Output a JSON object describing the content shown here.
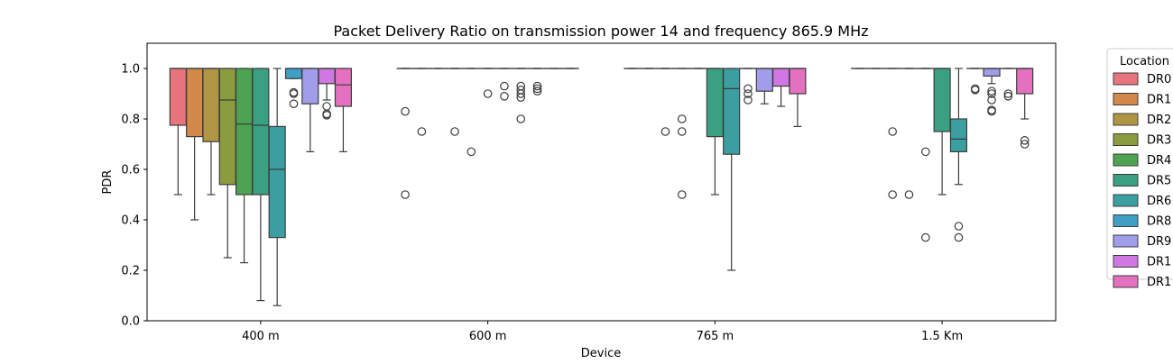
{
  "chart_data": {
    "type": "box",
    "title": "Packet Delivery Ratio on transmission power 14 and frequency 865.9 MHz",
    "xlabel": "Device",
    "ylabel": "PDR",
    "ylim": [
      0.0,
      1.1
    ],
    "yticks": [
      "0.0",
      "0.2",
      "0.4",
      "0.6",
      "0.8",
      "1.0"
    ],
    "categories": [
      "400 m",
      "600 m",
      "765 m",
      "1.5 Km"
    ],
    "legend": {
      "title": "Location",
      "placement": "right-outside",
      "entries": [
        "DR0",
        "DR1",
        "DR2",
        "DR3",
        "DR4",
        "DR5",
        "DR6",
        "DR8",
        "DR9",
        "DR1",
        "DR1"
      ]
    },
    "hue_colors": [
      "#e8747e",
      "#d3894a",
      "#b09544",
      "#8b9c3e",
      "#4da352",
      "#3ba082",
      "#3b9ea1",
      "#3f9fc4",
      "#a09deb",
      "#d177e3",
      "#e471bf"
    ],
    "series": [
      {
        "name": "DR0",
        "boxes": [
          {
            "category": "400 m",
            "q1": 0.775,
            "median": 1.0,
            "q3": 1.0,
            "whislo": 0.5,
            "whishi": 1.0,
            "fliers": []
          },
          {
            "category": "600 m",
            "q1": 1.0,
            "median": 1.0,
            "q3": 1.0,
            "whislo": 1.0,
            "whishi": 1.0,
            "fliers": [
              0.83,
              0.5
            ]
          },
          {
            "category": "765 m",
            "q1": 1.0,
            "median": 1.0,
            "q3": 1.0,
            "whislo": 1.0,
            "whishi": 1.0,
            "fliers": []
          },
          {
            "category": "1.5 Km",
            "q1": 1.0,
            "median": 1.0,
            "q3": 1.0,
            "whislo": 1.0,
            "whishi": 1.0,
            "fliers": []
          }
        ]
      },
      {
        "name": "DR1",
        "boxes": [
          {
            "category": "400 m",
            "q1": 0.73,
            "median": 1.0,
            "q3": 1.0,
            "whislo": 0.4,
            "whishi": 1.0,
            "fliers": []
          },
          {
            "category": "600 m",
            "q1": 1.0,
            "median": 1.0,
            "q3": 1.0,
            "whislo": 1.0,
            "whishi": 1.0,
            "fliers": [
              0.75
            ]
          },
          {
            "category": "765 m",
            "q1": 1.0,
            "median": 1.0,
            "q3": 1.0,
            "whislo": 1.0,
            "whishi": 1.0,
            "fliers": []
          },
          {
            "category": "1.5 Km",
            "q1": 1.0,
            "median": 1.0,
            "q3": 1.0,
            "whislo": 1.0,
            "whishi": 1.0,
            "fliers": []
          }
        ]
      },
      {
        "name": "DR2",
        "boxes": [
          {
            "category": "400 m",
            "q1": 0.71,
            "median": 1.0,
            "q3": 1.0,
            "whislo": 0.5,
            "whishi": 1.0,
            "fliers": []
          },
          {
            "category": "600 m",
            "q1": 1.0,
            "median": 1.0,
            "q3": 1.0,
            "whislo": 1.0,
            "whishi": 1.0,
            "fliers": []
          },
          {
            "category": "765 m",
            "q1": 1.0,
            "median": 1.0,
            "q3": 1.0,
            "whislo": 1.0,
            "whishi": 1.0,
            "fliers": [
              0.75
            ]
          },
          {
            "category": "1.5 Km",
            "q1": 1.0,
            "median": 1.0,
            "q3": 1.0,
            "whislo": 1.0,
            "whishi": 1.0,
            "fliers": [
              0.75,
              0.5
            ]
          }
        ]
      },
      {
        "name": "DR3",
        "boxes": [
          {
            "category": "400 m",
            "q1": 0.54,
            "median": 0.875,
            "q3": 1.0,
            "whislo": 0.25,
            "whishi": 1.0,
            "fliers": []
          },
          {
            "category": "600 m",
            "q1": 1.0,
            "median": 1.0,
            "q3": 1.0,
            "whislo": 1.0,
            "whishi": 1.0,
            "fliers": [
              0.75
            ]
          },
          {
            "category": "765 m",
            "q1": 1.0,
            "median": 1.0,
            "q3": 1.0,
            "whislo": 1.0,
            "whishi": 1.0,
            "fliers": [
              0.8,
              0.75,
              0.5
            ]
          },
          {
            "category": "1.5 Km",
            "q1": 1.0,
            "median": 1.0,
            "q3": 1.0,
            "whislo": 1.0,
            "whishi": 1.0,
            "fliers": [
              0.5
            ]
          }
        ]
      },
      {
        "name": "DR4",
        "boxes": [
          {
            "category": "400 m",
            "q1": 0.5,
            "median": 0.78,
            "q3": 1.0,
            "whislo": 0.23,
            "whishi": 1.0,
            "fliers": []
          },
          {
            "category": "600 m",
            "q1": 1.0,
            "median": 1.0,
            "q3": 1.0,
            "whislo": 1.0,
            "whishi": 1.0,
            "fliers": [
              0.67
            ]
          },
          {
            "category": "765 m",
            "q1": 1.0,
            "median": 1.0,
            "q3": 1.0,
            "whislo": 1.0,
            "whishi": 1.0,
            "fliers": []
          },
          {
            "category": "1.5 Km",
            "q1": 1.0,
            "median": 1.0,
            "q3": 1.0,
            "whislo": 1.0,
            "whishi": 1.0,
            "fliers": [
              0.67,
              0.33
            ]
          }
        ]
      },
      {
        "name": "DR5",
        "boxes": [
          {
            "category": "400 m",
            "q1": 0.5,
            "median": 0.775,
            "q3": 1.0,
            "whislo": 0.08,
            "whishi": 1.0,
            "fliers": []
          },
          {
            "category": "600 m",
            "q1": 1.0,
            "median": 1.0,
            "q3": 1.0,
            "whislo": 1.0,
            "whishi": 1.0,
            "fliers": [
              0.9
            ]
          },
          {
            "category": "765 m",
            "q1": 0.73,
            "median": 1.0,
            "q3": 1.0,
            "whislo": 0.5,
            "whishi": 1.0,
            "fliers": []
          },
          {
            "category": "1.5 Km",
            "q1": 0.75,
            "median": 1.0,
            "q3": 1.0,
            "whislo": 0.5,
            "whishi": 1.0,
            "fliers": []
          }
        ]
      },
      {
        "name": "DR6",
        "boxes": [
          {
            "category": "400 m",
            "q1": 0.33,
            "median": 0.6,
            "q3": 0.77,
            "whislo": 0.06,
            "whishi": 1.0,
            "fliers": []
          },
          {
            "category": "600 m",
            "q1": 1.0,
            "median": 1.0,
            "q3": 1.0,
            "whislo": 1.0,
            "whishi": 1.0,
            "fliers": [
              0.93,
              0.89
            ]
          },
          {
            "category": "765 m",
            "q1": 0.66,
            "median": 0.92,
            "q3": 1.0,
            "whislo": 0.2,
            "whishi": 1.0,
            "fliers": []
          },
          {
            "category": "1.5 Km",
            "q1": 0.67,
            "median": 0.72,
            "q3": 0.8,
            "whislo": 0.54,
            "whishi": 1.0,
            "fliers": [
              0.375,
              0.33
            ]
          }
        ]
      },
      {
        "name": "DR8",
        "boxes": [
          {
            "category": "400 m",
            "q1": 0.96,
            "median": 1.0,
            "q3": 1.0,
            "whislo": 0.96,
            "whishi": 1.0,
            "fliers": [
              0.905,
              0.9,
              0.86
            ]
          },
          {
            "category": "600 m",
            "q1": 1.0,
            "median": 1.0,
            "q3": 1.0,
            "whislo": 1.0,
            "whishi": 1.0,
            "fliers": [
              0.93,
              0.915,
              0.9,
              0.885,
              0.8
            ]
          },
          {
            "category": "765 m",
            "q1": 1.0,
            "median": 1.0,
            "q3": 1.0,
            "whislo": 1.0,
            "whishi": 1.0,
            "fliers": [
              0.92,
              0.9,
              0.875
            ]
          },
          {
            "category": "1.5 Km",
            "q1": 1.0,
            "median": 1.0,
            "q3": 1.0,
            "whislo": 1.0,
            "whishi": 1.0,
            "fliers": [
              0.92,
              0.915
            ]
          }
        ]
      },
      {
        "name": "DR9",
        "boxes": [
          {
            "category": "400 m",
            "q1": 0.86,
            "median": 1.0,
            "q3": 1.0,
            "whislo": 0.67,
            "whishi": 1.0,
            "fliers": []
          },
          {
            "category": "600 m",
            "q1": 1.0,
            "median": 1.0,
            "q3": 1.0,
            "whislo": 1.0,
            "whishi": 1.0,
            "fliers": [
              0.93,
              0.92,
              0.91
            ]
          },
          {
            "category": "765 m",
            "q1": 0.91,
            "median": 1.0,
            "q3": 1.0,
            "whislo": 0.86,
            "whishi": 1.0,
            "fliers": []
          },
          {
            "category": "1.5 Km",
            "q1": 0.97,
            "median": 1.0,
            "q3": 1.0,
            "whislo": 0.94,
            "whishi": 1.0,
            "fliers": [
              0.91,
              0.9,
              0.875,
              0.835,
              0.83
            ]
          }
        ]
      },
      {
        "name": "DR1",
        "boxes": [
          {
            "category": "400 m",
            "q1": 0.94,
            "median": 1.0,
            "q3": 1.0,
            "whislo": 0.875,
            "whishi": 1.0,
            "fliers": [
              0.85,
              0.82,
              0.815
            ]
          },
          {
            "category": "600 m",
            "q1": 1.0,
            "median": 1.0,
            "q3": 1.0,
            "whislo": 1.0,
            "whishi": 1.0,
            "fliers": []
          },
          {
            "category": "765 m",
            "q1": 0.93,
            "median": 1.0,
            "q3": 1.0,
            "whislo": 0.85,
            "whishi": 1.0,
            "fliers": []
          },
          {
            "category": "1.5 Km",
            "q1": 1.0,
            "median": 1.0,
            "q3": 1.0,
            "whislo": 1.0,
            "whishi": 1.0,
            "fliers": [
              0.9,
              0.89
            ]
          }
        ]
      },
      {
        "name": "DR1",
        "boxes": [
          {
            "category": "400 m",
            "q1": 0.85,
            "median": 0.935,
            "q3": 1.0,
            "whislo": 0.67,
            "whishi": 1.0,
            "fliers": []
          },
          {
            "category": "600 m",
            "q1": 1.0,
            "median": 1.0,
            "q3": 1.0,
            "whislo": 1.0,
            "whishi": 1.0,
            "fliers": []
          },
          {
            "category": "765 m",
            "q1": 0.9,
            "median": 1.0,
            "q3": 1.0,
            "whislo": 0.77,
            "whishi": 1.0,
            "fliers": []
          },
          {
            "category": "1.5 Km",
            "q1": 0.9,
            "median": 1.0,
            "q3": 1.0,
            "whislo": 0.8,
            "whishi": 1.0,
            "fliers": [
              0.715,
              0.7
            ]
          }
        ]
      }
    ],
    "grid": false
  }
}
